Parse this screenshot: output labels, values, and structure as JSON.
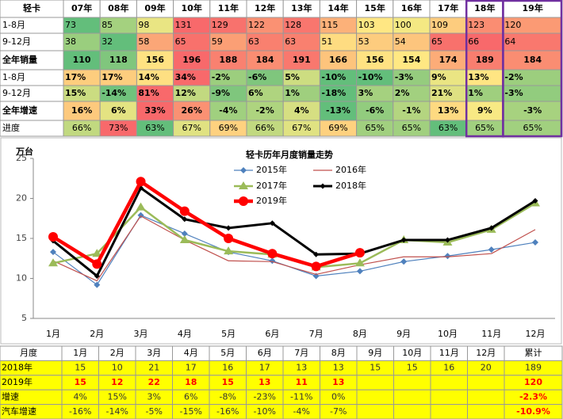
{
  "top_table": {
    "header": [
      "轻卡",
      "07年",
      "08年",
      "09年",
      "10年",
      "11年",
      "12年",
      "13年",
      "14年",
      "15年",
      "16年",
      "17年",
      "18年",
      "19年"
    ],
    "rows": [
      {
        "label": "1-8月",
        "cells": [
          "73",
          "85",
          "98",
          "131",
          "129",
          "122",
          "128",
          "115",
          "103",
          "100",
          "109",
          "123",
          "120"
        ]
      },
      {
        "label": "9-12月",
        "cells": [
          "38",
          "32",
          "58",
          "65",
          "59",
          "63",
          "63",
          "51",
          "53",
          "54",
          "65",
          "66",
          "64"
        ]
      },
      {
        "label": "全年销量",
        "cells": [
          "110",
          "118",
          "156",
          "196",
          "188",
          "184",
          "191",
          "166",
          "156",
          "154",
          "174",
          "189",
          "184"
        ]
      },
      {
        "label": "1-8月",
        "cells": [
          "17%",
          "17%",
          "14%",
          "34%",
          "-2%",
          "-6%",
          "5%",
          "-10%",
          "-10%",
          "-3%",
          "9%",
          "13%",
          "-2%"
        ]
      },
      {
        "label": "9-12月",
        "cells": [
          "15%",
          "-14%",
          "81%",
          "12%",
          "-9%",
          "6%",
          "1%",
          "-18%",
          "3%",
          "2%",
          "21%",
          "1%",
          "-3%"
        ]
      },
      {
        "label": "全年增速",
        "cells": [
          "16%",
          "6%",
          "33%",
          "26%",
          "-4%",
          "-2%",
          "4%",
          "-13%",
          "-6%",
          "-1%",
          "13%",
          "9%",
          "-3%"
        ]
      },
      {
        "label": "进度",
        "cells": [
          "66%",
          "73%",
          "63%",
          "67%",
          "69%",
          "66%",
          "67%",
          "69%",
          "65%",
          "65%",
          "63%",
          "65%",
          "65%"
        ]
      }
    ]
  },
  "chart_data": {
    "type": "line",
    "title": "轻卡历年月度销量走势",
    "y_label": "万台",
    "categories": [
      "1月",
      "2月",
      "3月",
      "4月",
      "5月",
      "6月",
      "7月",
      "8月",
      "9月",
      "10月",
      "11月",
      "12月"
    ],
    "ylim": [
      5,
      25
    ],
    "yticks": [
      5,
      10,
      15,
      20,
      25
    ],
    "series": [
      {
        "name": "2015年",
        "color": "#4f81bd",
        "marker": "diamond",
        "width": 1.2,
        "values": [
          13.3,
          9.2,
          17.9,
          15.6,
          13.3,
          12.2,
          10.3,
          10.9,
          12.1,
          12.8,
          13.6,
          14.5
        ]
      },
      {
        "name": "2016年",
        "color": "#c0504d",
        "marker": "none",
        "width": 1.2,
        "values": [
          12.2,
          9.7,
          17.8,
          14.8,
          12.2,
          12.1,
          10.5,
          11.7,
          12.7,
          12.7,
          13.1,
          16.1
        ]
      },
      {
        "name": "2017年",
        "color": "#9bbb59",
        "marker": "triangle",
        "width": 2.5,
        "values": [
          11.9,
          13.1,
          18.9,
          14.8,
          13.4,
          13.0,
          11.4,
          11.9,
          14.8,
          14.5,
          16.1,
          19.4
        ]
      },
      {
        "name": "2018年",
        "color": "#000000",
        "marker": "diamond",
        "width": 3,
        "values": [
          14.7,
          10.3,
          21.3,
          17.4,
          16.3,
          16.9,
          13.0,
          13.1,
          14.8,
          14.8,
          16.3,
          19.7
        ]
      },
      {
        "name": "2019年",
        "color": "#ff0000",
        "marker": "circle",
        "width": 4.5,
        "values": [
          15.2,
          11.8,
          22.1,
          18.4,
          15.0,
          13.1,
          11.5,
          13.2,
          null,
          null,
          null,
          null
        ]
      }
    ]
  },
  "bottom_table": {
    "header": [
      "月度",
      "1月",
      "2月",
      "3月",
      "4月",
      "5月",
      "6月",
      "7月",
      "8月",
      "9月",
      "10月",
      "11月",
      "12月",
      "累计"
    ],
    "rows": [
      {
        "label": "2018年",
        "cells": [
          "15",
          "10",
          "21",
          "17",
          "16",
          "17",
          "13",
          "13",
          "15",
          "15",
          "16",
          "20",
          "189"
        ]
      },
      {
        "label": "2019年",
        "cells": [
          "15",
          "12",
          "22",
          "18",
          "15",
          "13",
          "11",
          "13",
          null,
          null,
          null,
          null,
          "120"
        ]
      },
      {
        "label": "增速",
        "cells": [
          "4%",
          "15%",
          "3%",
          "6%",
          "-8%",
          "-23%",
          "-11%",
          "0%",
          null,
          null,
          null,
          null,
          "-2.3%"
        ]
      },
      {
        "label": "汽车增速",
        "cells": [
          "-16%",
          "-14%",
          "-5%",
          "-15%",
          "-16%",
          "-10%",
          "-4%",
          "-7%",
          null,
          null,
          null,
          null,
          "-10.9%"
        ]
      }
    ]
  }
}
